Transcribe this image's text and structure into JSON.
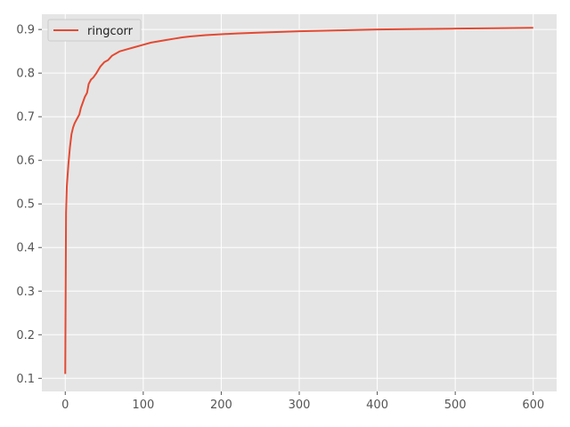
{
  "chart_data": {
    "type": "line",
    "title": "",
    "xlabel": "",
    "ylabel": "",
    "xlim": [
      -30,
      630
    ],
    "ylim": [
      0.07,
      0.935
    ],
    "xticks": [
      0,
      100,
      200,
      300,
      400,
      500,
      600
    ],
    "yticks": [
      0.1,
      0.2,
      0.3,
      0.4,
      0.5,
      0.6,
      0.7,
      0.8,
      0.9
    ],
    "grid": true,
    "legend_position": "top-left",
    "background": "#e5e5e5",
    "series": [
      {
        "name": "ringcorr",
        "color": "#e24a33",
        "x": [
          0,
          1,
          2,
          4,
          6,
          8,
          10,
          12,
          15,
          18,
          20,
          22,
          25,
          28,
          30,
          33,
          36,
          40,
          45,
          50,
          55,
          60,
          65,
          70,
          80,
          90,
          100,
          110,
          120,
          130,
          140,
          150,
          160,
          180,
          200,
          220,
          250,
          300,
          350,
          400,
          450,
          500,
          550,
          600
        ],
        "y": [
          0.11,
          0.48,
          0.54,
          0.59,
          0.63,
          0.66,
          0.675,
          0.685,
          0.695,
          0.705,
          0.72,
          0.73,
          0.745,
          0.755,
          0.775,
          0.785,
          0.79,
          0.8,
          0.815,
          0.825,
          0.83,
          0.84,
          0.845,
          0.85,
          0.855,
          0.86,
          0.865,
          0.87,
          0.873,
          0.876,
          0.879,
          0.882,
          0.884,
          0.887,
          0.889,
          0.891,
          0.893,
          0.896,
          0.898,
          0.9,
          0.901,
          0.902,
          0.903,
          0.904
        ]
      }
    ]
  }
}
